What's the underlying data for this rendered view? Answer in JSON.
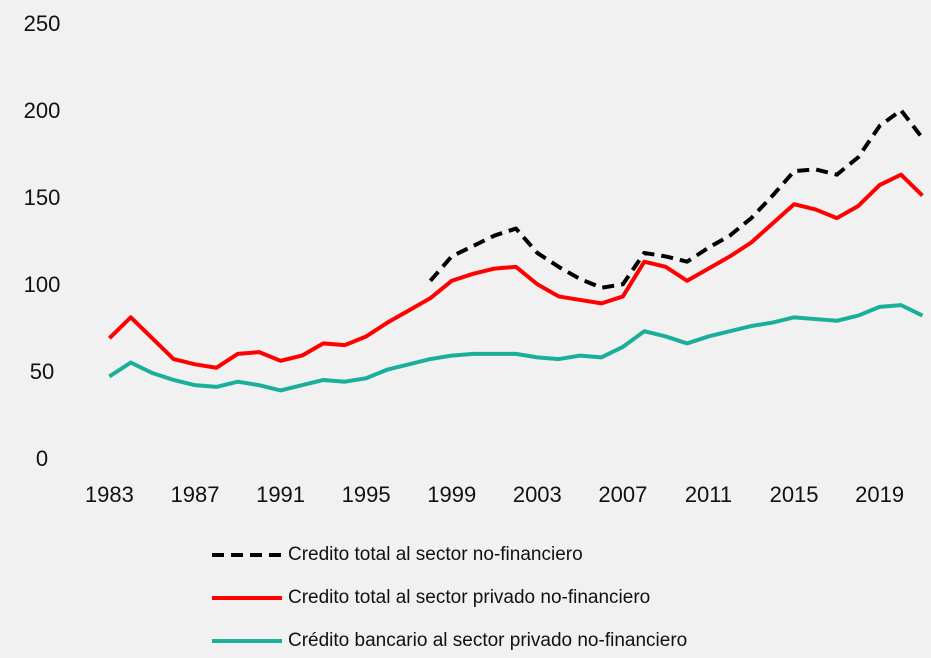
{
  "chart_data": {
    "type": "line",
    "x": [
      1983,
      1984,
      1985,
      1986,
      1987,
      1988,
      1989,
      1990,
      1991,
      1992,
      1993,
      1994,
      1995,
      1996,
      1997,
      1998,
      1999,
      2000,
      2001,
      2002,
      2003,
      2004,
      2005,
      2006,
      2007,
      2008,
      2009,
      2010,
      2011,
      2012,
      2013,
      2014,
      2015,
      2016,
      2017,
      2018,
      2019,
      2020,
      2021
    ],
    "series": [
      {
        "name": "Credito total al sector no-financiero",
        "color": "#000000",
        "dashed": true,
        "values": [
          null,
          null,
          null,
          null,
          null,
          null,
          null,
          null,
          null,
          null,
          null,
          null,
          null,
          null,
          null,
          103,
          117,
          123,
          129,
          133,
          119,
          111,
          104,
          99,
          101,
          119,
          117,
          114,
          122,
          129,
          139,
          152,
          166,
          167,
          164,
          174,
          192,
          201,
          185
        ]
      },
      {
        "name": "Credito total al sector privado no-financiero",
        "color": "#ff0000",
        "dashed": false,
        "values": [
          70,
          82,
          70,
          58,
          55,
          53,
          61,
          62,
          57,
          60,
          67,
          66,
          71,
          79,
          86,
          93,
          103,
          107,
          110,
          111,
          101,
          94,
          92,
          90,
          94,
          114,
          111,
          103,
          110,
          117,
          125,
          136,
          147,
          144,
          139,
          146,
          158,
          164,
          152
        ]
      },
      {
        "name": "Crédito bancario al sector privado no-financiero",
        "color": "#1aaf9a",
        "dashed": false,
        "values": [
          48,
          56,
          50,
          46,
          43,
          42,
          45,
          43,
          40,
          43,
          46,
          45,
          47,
          52,
          55,
          58,
          60,
          61,
          61,
          61,
          59,
          58,
          60,
          59,
          65,
          74,
          71,
          67,
          71,
          74,
          77,
          79,
          82,
          81,
          80,
          83,
          88,
          89,
          83
        ]
      }
    ],
    "xlim": [
      1982,
      2021.4
    ],
    "xticks": [
      1983,
      1987,
      1991,
      1995,
      1999,
      2003,
      2007,
      2011,
      2015,
      2019
    ],
    "ylim": [
      0,
      250
    ],
    "yticks": [
      0,
      50,
      100,
      150,
      200,
      250
    ],
    "grid": false
  }
}
